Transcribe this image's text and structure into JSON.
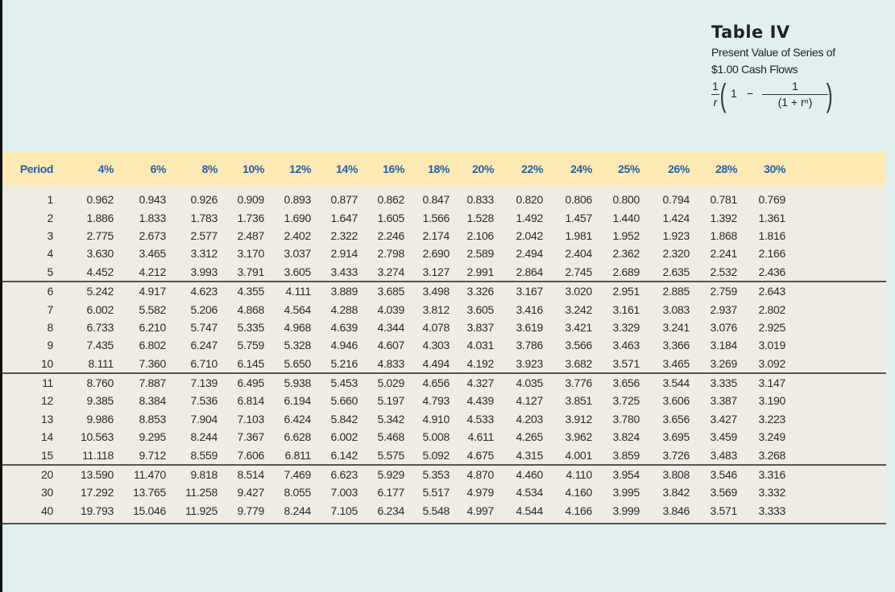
{
  "title": {
    "heading": "Table IV",
    "subtitle_line1": "Present Value of Series of",
    "subtitle_line2": "$1.00 Cash Flows",
    "formula": {
      "frac1_num": "1",
      "frac1_den": "r",
      "one": "1",
      "minus": "−",
      "frac2_num": "1",
      "frac2_den": "(1 + rⁿ)"
    }
  },
  "table": {
    "headers": [
      "Period",
      "4%",
      "6%",
      "8%",
      "10%",
      "12%",
      "14%",
      "16%",
      "18%",
      "20%",
      "22%",
      "24%",
      "25%",
      "26%",
      "28%",
      "30%"
    ],
    "rows": [
      [
        "1",
        "0.962",
        "0.943",
        "0.926",
        "0.909",
        "0.893",
        "0.877",
        "0.862",
        "0.847",
        "0.833",
        "0.820",
        "0.806",
        "0.800",
        "0.794",
        "0.781",
        "0.769"
      ],
      [
        "2",
        "1.886",
        "1.833",
        "1.783",
        "1.736",
        "1.690",
        "1.647",
        "1.605",
        "1.566",
        "1.528",
        "1.492",
        "1.457",
        "1.440",
        "1.424",
        "1.392",
        "1.361"
      ],
      [
        "3",
        "2.775",
        "2.673",
        "2.577",
        "2.487",
        "2.402",
        "2.322",
        "2.246",
        "2.174",
        "2.106",
        "2.042",
        "1.981",
        "1.952",
        "1.923",
        "1.868",
        "1.816"
      ],
      [
        "4",
        "3.630",
        "3.465",
        "3.312",
        "3.170",
        "3.037",
        "2.914",
        "2.798",
        "2.690",
        "2.589",
        "2.494",
        "2.404",
        "2.362",
        "2.320",
        "2.241",
        "2.166"
      ],
      [
        "5",
        "4.452",
        "4.212",
        "3.993",
        "3.791",
        "3.605",
        "3.433",
        "3.274",
        "3.127",
        "2.991",
        "2.864",
        "2.745",
        "2.689",
        "2.635",
        "2.532",
        "2.436"
      ],
      [
        "6",
        "5.242",
        "4.917",
        "4.623",
        "4.355",
        "4.111",
        "3.889",
        "3.685",
        "3.498",
        "3.326",
        "3.167",
        "3.020",
        "2.951",
        "2.885",
        "2.759",
        "2.643"
      ],
      [
        "7",
        "6.002",
        "5.582",
        "5.206",
        "4.868",
        "4.564",
        "4.288",
        "4.039",
        "3.812",
        "3.605",
        "3.416",
        "3.242",
        "3.161",
        "3.083",
        "2.937",
        "2.802"
      ],
      [
        "8",
        "6.733",
        "6.210",
        "5.747",
        "5.335",
        "4.968",
        "4.639",
        "4.344",
        "4.078",
        "3.837",
        "3.619",
        "3.421",
        "3.329",
        "3.241",
        "3.076",
        "2.925"
      ],
      [
        "9",
        "7.435",
        "6.802",
        "6.247",
        "5.759",
        "5.328",
        "4.946",
        "4.607",
        "4.303",
        "4.031",
        "3.786",
        "3.566",
        "3.463",
        "3.366",
        "3.184",
        "3.019"
      ],
      [
        "10",
        "8.111",
        "7.360",
        "6.710",
        "6.145",
        "5.650",
        "5.216",
        "4.833",
        "4.494",
        "4.192",
        "3.923",
        "3.682",
        "3.571",
        "3.465",
        "3.269",
        "3.092"
      ],
      [
        "11",
        "8.760",
        "7.887",
        "7.139",
        "6.495",
        "5.938",
        "5.453",
        "5.029",
        "4.656",
        "4.327",
        "4.035",
        "3.776",
        "3.656",
        "3.544",
        "3.335",
        "3.147"
      ],
      [
        "12",
        "9.385",
        "8.384",
        "7.536",
        "6.814",
        "6.194",
        "5.660",
        "5.197",
        "4.793",
        "4.439",
        "4.127",
        "3.851",
        "3.725",
        "3.606",
        "3.387",
        "3.190"
      ],
      [
        "13",
        "9.986",
        "8.853",
        "7.904",
        "7.103",
        "6.424",
        "5.842",
        "5.342",
        "4.910",
        "4.533",
        "4.203",
        "3.912",
        "3.780",
        "3.656",
        "3.427",
        "3.223"
      ],
      [
        "14",
        "10.563",
        "9.295",
        "8.244",
        "7.367",
        "6.628",
        "6.002",
        "5.468",
        "5.008",
        "4.611",
        "4.265",
        "3.962",
        "3.824",
        "3.695",
        "3.459",
        "3.249"
      ],
      [
        "15",
        "11.118",
        "9.712",
        "8.559",
        "7.606",
        "6.811",
        "6.142",
        "5.575",
        "5.092",
        "4.675",
        "4.315",
        "4.001",
        "3.859",
        "3.726",
        "3.483",
        "3.268"
      ],
      [
        "20",
        "13.590",
        "11.470",
        "9.818",
        "8.514",
        "7.469",
        "6.623",
        "5.929",
        "5.353",
        "4.870",
        "4.460",
        "4.110",
        "3.954",
        "3.808",
        "3.546",
        "3.316"
      ],
      [
        "30",
        "17.292",
        "13.765",
        "11.258",
        "9.427",
        "8.055",
        "7.003",
        "6.177",
        "5.517",
        "4.979",
        "4.534",
        "4.160",
        "3.995",
        "3.842",
        "3.569",
        "3.332"
      ],
      [
        "40",
        "19.793",
        "15.046",
        "11.925",
        "9.779",
        "8.244",
        "7.105",
        "6.234",
        "5.548",
        "4.997",
        "4.544",
        "4.166",
        "3.999",
        "3.846",
        "3.571",
        "3.333"
      ]
    ],
    "group_dividers_before_rows": [
      5,
      10,
      15
    ]
  },
  "colors": {
    "page_background": "#dff0ee",
    "header_band": "#fde9b4",
    "header_text": "#2c5ea3",
    "table_body": "#efece3",
    "rule": "#555555"
  }
}
